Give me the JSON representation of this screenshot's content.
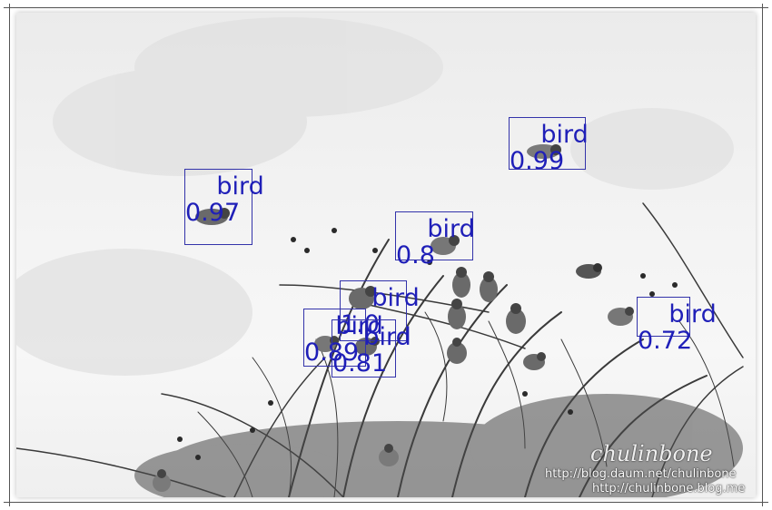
{
  "image": {
    "description_colors": {
      "sky": "#f0f0f0",
      "branch": "#3a3a3a",
      "box": "#3333aa",
      "label": "#1f1fb8"
    }
  },
  "detections": [
    {
      "label": "bird",
      "score": "0.97"
    },
    {
      "label": "bird",
      "score": "0.99"
    },
    {
      "label": "bird",
      "score": "0.8"
    },
    {
      "label": "bird",
      "score": "1.0"
    },
    {
      "label": "bird",
      "score": "0.89"
    },
    {
      "label": "bird",
      "score": "0.81"
    },
    {
      "label": "bird",
      "score": "0.72"
    }
  ],
  "watermark": {
    "signature": "chulinbone",
    "line1": "http://blog.daum.net/chulinbone",
    "line2": "http://chulinbone.blog.me"
  }
}
